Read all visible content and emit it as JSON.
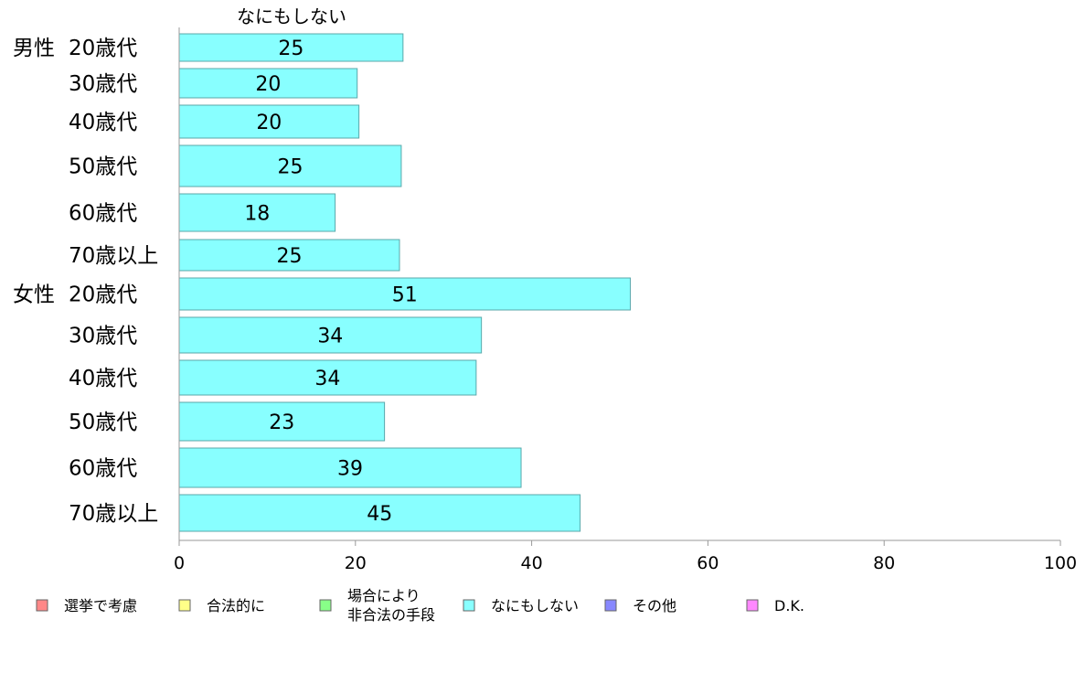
{
  "chart_data": {
    "type": "bar",
    "orientation": "horizontal",
    "column_header": "なにもしない",
    "group_labels": [
      "男性",
      "女性"
    ],
    "categories": [
      "20歳代",
      "30歳代",
      "40歳代",
      "50歳代",
      "60歳代",
      "70歳以上",
      "20歳代",
      "30歳代",
      "40歳代",
      "50歳代",
      "60歳代",
      "70歳以上"
    ],
    "series": [
      {
        "name": "なにもしない",
        "color": "#88ffff",
        "values": [
          25.4,
          20.2,
          20.4,
          25.2,
          17.7,
          25.0,
          51.2,
          34.3,
          33.7,
          23.3,
          38.8,
          45.5
        ],
        "labels": [
          "25",
          "20",
          "20",
          "25",
          "18",
          "25",
          "51",
          "34",
          "34",
          "23",
          "39",
          "45"
        ]
      }
    ],
    "xlim": [
      0,
      100
    ],
    "xticks": [
      "0",
      "20",
      "40",
      "60",
      "80",
      "100"
    ],
    "grid": false,
    "legend_position": "bottom",
    "legend": [
      {
        "label": "選挙で考慮",
        "color": "#ff8888"
      },
      {
        "label": "合法的に",
        "color": "#ffff88"
      },
      {
        "label": "場合により\n非合法の手段",
        "color": "#88ff88"
      },
      {
        "label": "なにもしない",
        "color": "#88ffff"
      },
      {
        "label": "その他",
        "color": "#8888ff"
      },
      {
        "label": "D.K.",
        "color": "#ff88ff"
      }
    ]
  }
}
